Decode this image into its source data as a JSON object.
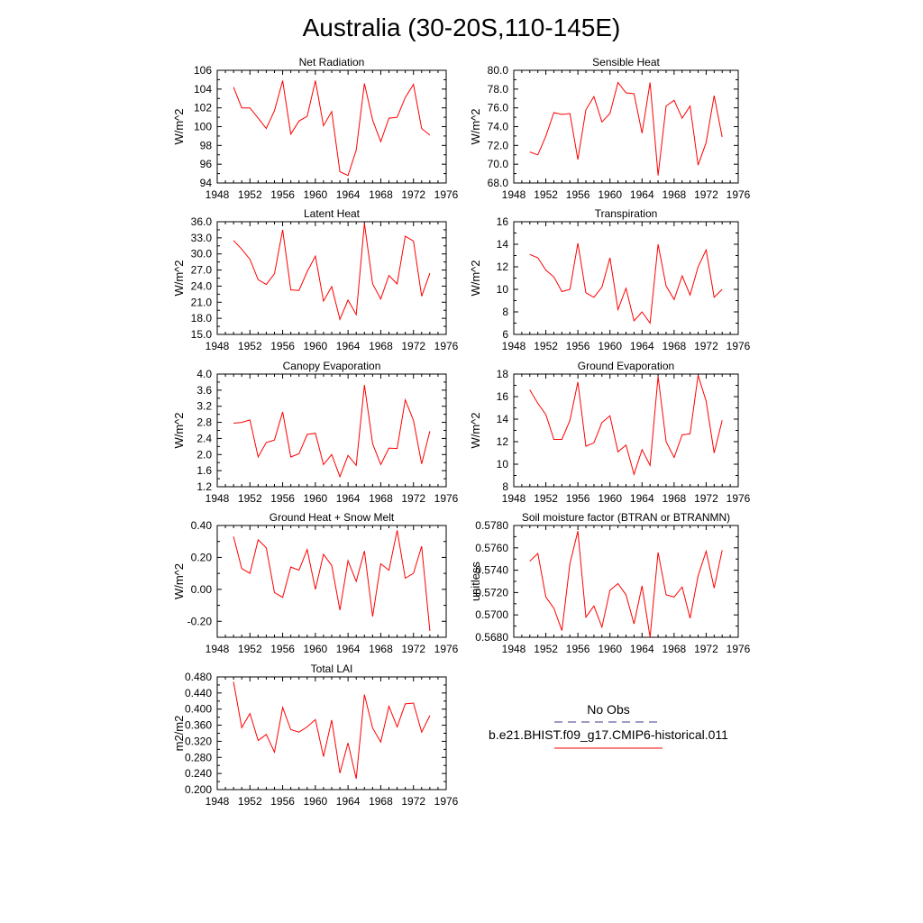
{
  "figure": {
    "title": "Australia (30-20S,110-145E)"
  },
  "colors": {
    "series": "#ff0000",
    "obs": "#3a3a8c",
    "axis": "#000000"
  },
  "legend": {
    "obs_label": "No Obs",
    "model_label": "b.e21.BHIST.f09_g17.CMIP6-historical.011"
  },
  "chart_data": [
    {
      "type": "line",
      "title": "Net Radiation",
      "ylabel": "W/m^2",
      "xlim": [
        1948,
        1976
      ],
      "xticks": [
        "1948",
        "1952",
        "1956",
        "1960",
        "1964",
        "1968",
        "1972",
        "1976"
      ],
      "ylim": [
        94,
        106
      ],
      "yticks": [
        "94",
        "96",
        "98",
        "100",
        "102",
        "104",
        "106"
      ],
      "series": [
        {
          "x": [
            1950,
            1951,
            1952,
            1953,
            1954,
            1955,
            1956,
            1957,
            1958,
            1959,
            1960,
            1961,
            1962,
            1963,
            1964,
            1965,
            1966,
            1967,
            1968,
            1969,
            1970,
            1971,
            1972,
            1973,
            1974
          ],
          "values": [
            104.2,
            102.0,
            102.0,
            100.9,
            99.8,
            101.7,
            104.9,
            99.2,
            100.6,
            101.1,
            104.9,
            100.1,
            101.6,
            95.2,
            94.8,
            97.5,
            104.6,
            100.7,
            98.4,
            100.9,
            101.0,
            103.1,
            104.5,
            99.8,
            99.1
          ]
        }
      ]
    },
    {
      "type": "line",
      "title": "Sensible Heat",
      "ylabel": "W/m^2",
      "xlim": [
        1948,
        1976
      ],
      "xticks": [
        "1948",
        "1952",
        "1956",
        "1960",
        "1964",
        "1968",
        "1972",
        "1976"
      ],
      "ylim": [
        68,
        80
      ],
      "yticks": [
        "68.0",
        "70.0",
        "72.0",
        "74.0",
        "76.0",
        "78.0",
        "80.0"
      ],
      "series": [
        {
          "x": [
            1950,
            1951,
            1952,
            1953,
            1954,
            1955,
            1956,
            1957,
            1958,
            1959,
            1960,
            1961,
            1962,
            1963,
            1964,
            1965,
            1966,
            1967,
            1968,
            1969,
            1970,
            1971,
            1972,
            1973,
            1974
          ],
          "values": [
            71.3,
            71.0,
            73.0,
            75.5,
            75.3,
            75.4,
            70.5,
            75.8,
            77.2,
            74.5,
            75.4,
            78.7,
            77.6,
            77.5,
            73.3,
            78.7,
            68.8,
            76.2,
            76.8,
            74.9,
            76.2,
            69.9,
            72.3,
            77.3,
            72.9
          ]
        }
      ]
    },
    {
      "type": "line",
      "title": "Latent Heat",
      "ylabel": "W/m^2",
      "xlim": [
        1948,
        1976
      ],
      "xticks": [
        "1948",
        "1952",
        "1956",
        "1960",
        "1964",
        "1968",
        "1972",
        "1976"
      ],
      "ylim": [
        15,
        36
      ],
      "yticks": [
        "15.0",
        "18.0",
        "21.0",
        "24.0",
        "27.0",
        "30.0",
        "33.0",
        "36.0"
      ],
      "series": [
        {
          "x": [
            1950,
            1951,
            1952,
            1953,
            1954,
            1955,
            1956,
            1957,
            1958,
            1959,
            1960,
            1961,
            1962,
            1963,
            1964,
            1965,
            1966,
            1967,
            1968,
            1969,
            1970,
            1971,
            1972,
            1973,
            1974
          ],
          "values": [
            32.5,
            30.9,
            29.0,
            25.2,
            24.3,
            26.3,
            34.5,
            23.3,
            23.2,
            26.7,
            29.6,
            21.2,
            23.9,
            17.8,
            21.4,
            18.7,
            35.7,
            24.4,
            21.6,
            26.0,
            24.4,
            33.3,
            32.4,
            22.1,
            26.4
          ]
        }
      ]
    },
    {
      "type": "line",
      "title": "Transpiration",
      "ylabel": "W/m^2",
      "xlim": [
        1948,
        1976
      ],
      "xticks": [
        "1948",
        "1952",
        "1956",
        "1960",
        "1964",
        "1968",
        "1972",
        "1976"
      ],
      "ylim": [
        6,
        16
      ],
      "yticks": [
        "6",
        "8",
        "10",
        "12",
        "14",
        "16"
      ],
      "series": [
        {
          "x": [
            1950,
            1951,
            1952,
            1953,
            1954,
            1955,
            1956,
            1957,
            1958,
            1959,
            1960,
            1961,
            1962,
            1963,
            1964,
            1965,
            1966,
            1967,
            1968,
            1969,
            1970,
            1971,
            1972,
            1973,
            1974
          ],
          "values": [
            13.1,
            12.8,
            11.7,
            11.1,
            9.8,
            10.0,
            14.1,
            9.7,
            9.3,
            10.2,
            12.8,
            8.2,
            10.1,
            7.2,
            8.0,
            7.0,
            14.0,
            10.3,
            9.1,
            11.2,
            9.5,
            12.0,
            13.5,
            9.3,
            10.0
          ]
        }
      ]
    },
    {
      "type": "line",
      "title": "Canopy Evaporation",
      "ylabel": "W/m^2",
      "xlim": [
        1948,
        1976
      ],
      "xticks": [
        "1948",
        "1952",
        "1956",
        "1960",
        "1964",
        "1968",
        "1972",
        "1976"
      ],
      "ylim": [
        1.2,
        4.0
      ],
      "yticks": [
        "1.2",
        "1.6",
        "2.0",
        "2.4",
        "2.8",
        "3.2",
        "3.6",
        "4.0"
      ],
      "series": [
        {
          "x": [
            1950,
            1951,
            1952,
            1953,
            1954,
            1955,
            1956,
            1957,
            1958,
            1959,
            1960,
            1961,
            1962,
            1963,
            1964,
            1965,
            1966,
            1967,
            1968,
            1969,
            1970,
            1971,
            1972,
            1973,
            1974
          ],
          "values": [
            2.78,
            2.8,
            2.86,
            1.94,
            2.3,
            2.36,
            3.06,
            1.94,
            2.02,
            2.5,
            2.53,
            1.75,
            2.0,
            1.45,
            1.98,
            1.73,
            3.73,
            2.27,
            1.75,
            2.16,
            2.15,
            3.36,
            2.85,
            1.77,
            2.58
          ]
        }
      ]
    },
    {
      "type": "line",
      "title": "Ground Evaporation",
      "ylabel": "W/m^2",
      "xlim": [
        1948,
        1976
      ],
      "xticks": [
        "1948",
        "1952",
        "1956",
        "1960",
        "1964",
        "1968",
        "1972",
        "1976"
      ],
      "ylim": [
        8,
        18
      ],
      "yticks": [
        "8",
        "10",
        "12",
        "14",
        "16",
        "18"
      ],
      "series": [
        {
          "x": [
            1950,
            1951,
            1952,
            1953,
            1954,
            1955,
            1956,
            1957,
            1958,
            1959,
            1960,
            1961,
            1962,
            1963,
            1964,
            1965,
            1966,
            1967,
            1968,
            1969,
            1970,
            1971,
            1972,
            1973,
            1974
          ],
          "values": [
            16.6,
            15.4,
            14.4,
            12.2,
            12.2,
            13.9,
            17.3,
            11.6,
            11.9,
            13.7,
            14.3,
            11.1,
            11.7,
            9.1,
            11.3,
            9.9,
            17.8,
            12.0,
            10.6,
            12.6,
            12.7,
            17.9,
            15.6,
            11.0,
            13.9
          ]
        }
      ]
    },
    {
      "type": "line",
      "title": "Ground Heat + Snow Melt",
      "ylabel": "W/m^2",
      "xlim": [
        1948,
        1976
      ],
      "xticks": [
        "1948",
        "1952",
        "1956",
        "1960",
        "1964",
        "1968",
        "1972",
        "1976"
      ],
      "ylim": [
        -0.3,
        0.4
      ],
      "yticks": [
        "-0.20",
        "0.00",
        "0.20",
        "0.40"
      ],
      "ytick_values": [
        -0.2,
        0.0,
        0.2,
        0.4
      ],
      "series": [
        {
          "x": [
            1950,
            1951,
            1952,
            1953,
            1954,
            1955,
            1956,
            1957,
            1958,
            1959,
            1960,
            1961,
            1962,
            1963,
            1964,
            1965,
            1966,
            1967,
            1968,
            1969,
            1970,
            1971,
            1972,
            1973,
            1974
          ],
          "values": [
            0.33,
            0.13,
            0.1,
            0.31,
            0.26,
            -0.02,
            -0.05,
            0.14,
            0.12,
            0.25,
            0.0,
            0.22,
            0.15,
            -0.13,
            0.18,
            0.05,
            0.24,
            -0.17,
            0.16,
            0.12,
            0.37,
            0.07,
            0.1,
            0.27,
            -0.26
          ]
        }
      ]
    },
    {
      "type": "line",
      "title": "Soil moisture factor (BTRAN or BTRANMN)",
      "ylabel": "unitless",
      "xlim": [
        1948,
        1976
      ],
      "xticks": [
        "1948",
        "1952",
        "1956",
        "1960",
        "1964",
        "1968",
        "1972",
        "1976"
      ],
      "ylim": [
        0.568,
        0.578
      ],
      "yticks": [
        "0.5680",
        "0.5700",
        "0.5720",
        "0.5740",
        "0.5760",
        "0.5780"
      ],
      "series": [
        {
          "x": [
            1950,
            1951,
            1952,
            1953,
            1954,
            1955,
            1956,
            1957,
            1958,
            1959,
            1960,
            1961,
            1962,
            1963,
            1964,
            1965,
            1966,
            1967,
            1968,
            1969,
            1970,
            1971,
            1972,
            1973,
            1974
          ],
          "values": [
            0.5748,
            0.5755,
            0.5716,
            0.5706,
            0.5686,
            0.5746,
            0.5775,
            0.5698,
            0.5708,
            0.5689,
            0.5722,
            0.5728,
            0.5718,
            0.5692,
            0.5726,
            0.568,
            0.5756,
            0.5718,
            0.5716,
            0.5725,
            0.5697,
            0.5735,
            0.5757,
            0.5724,
            0.5758
          ]
        }
      ]
    },
    {
      "type": "line",
      "title": "Total LAI",
      "ylabel": "m2/m2",
      "xlim": [
        1948,
        1976
      ],
      "xticks": [
        "1948",
        "1952",
        "1956",
        "1960",
        "1964",
        "1968",
        "1972",
        "1976"
      ],
      "ylim": [
        0.2,
        0.48
      ],
      "yticks": [
        "0.200",
        "0.240",
        "0.280",
        "0.320",
        "0.360",
        "0.400",
        "0.440",
        "0.480"
      ],
      "series": [
        {
          "x": [
            1950,
            1951,
            1952,
            1953,
            1954,
            1955,
            1956,
            1957,
            1958,
            1959,
            1960,
            1961,
            1962,
            1963,
            1964,
            1965,
            1966,
            1967,
            1968,
            1969,
            1970,
            1971,
            1972,
            1973,
            1974
          ],
          "values": [
            0.468,
            0.354,
            0.389,
            0.322,
            0.337,
            0.293,
            0.404,
            0.349,
            0.343,
            0.356,
            0.374,
            0.282,
            0.373,
            0.241,
            0.316,
            0.227,
            0.436,
            0.353,
            0.318,
            0.407,
            0.356,
            0.413,
            0.415,
            0.343,
            0.384
          ]
        }
      ]
    }
  ]
}
